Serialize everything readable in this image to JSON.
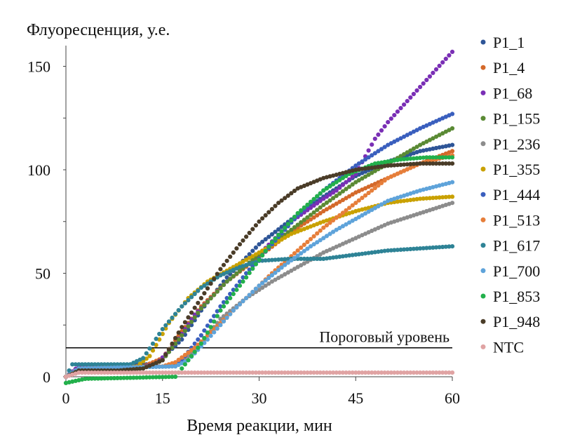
{
  "chart_data": {
    "type": "scatter",
    "ylabel": "Флуоресценция, у.е.",
    "xlabel": "Время реакции, мин",
    "xlim": [
      0,
      60
    ],
    "ylim": [
      0,
      160
    ],
    "x_ticks": [
      0,
      15,
      30,
      45,
      60
    ],
    "y_ticks": [
      0,
      50,
      100,
      150
    ],
    "grid": false,
    "legend_position": "right",
    "threshold": {
      "value": 14,
      "label": "Пороговый уровень"
    },
    "series": [
      {
        "name": "P1_1",
        "color": "#2e5597",
        "points": [
          [
            0,
            0
          ],
          [
            2,
            5
          ],
          [
            10,
            6
          ],
          [
            13,
            6
          ],
          [
            15,
            9
          ],
          [
            18,
            18
          ],
          [
            21,
            32
          ],
          [
            25,
            48
          ],
          [
            30,
            64
          ],
          [
            35,
            76
          ],
          [
            40,
            87
          ],
          [
            45,
            97
          ],
          [
            50,
            104
          ],
          [
            55,
            109
          ],
          [
            60,
            112
          ]
        ]
      },
      {
        "name": "P1_4",
        "color": "#d4692a",
        "points": [
          [
            0,
            0
          ],
          [
            2,
            4
          ],
          [
            12,
            5
          ],
          [
            15,
            9
          ],
          [
            18,
            22
          ],
          [
            21,
            34
          ],
          [
            25,
            46
          ],
          [
            30,
            58
          ],
          [
            35,
            70
          ],
          [
            40,
            80
          ],
          [
            45,
            89
          ],
          [
            50,
            96
          ],
          [
            55,
            103
          ],
          [
            60,
            109
          ]
        ]
      },
      {
        "name": "P1_68",
        "color": "#7a2fb5",
        "points": [
          [
            0,
            0
          ],
          [
            2,
            5
          ],
          [
            12,
            5
          ],
          [
            14,
            6
          ],
          [
            17,
            16
          ],
          [
            20,
            30
          ],
          [
            25,
            46
          ],
          [
            30,
            59
          ],
          [
            35,
            75
          ],
          [
            40,
            86
          ],
          [
            42,
            90
          ],
          [
            45,
            98
          ],
          [
            48,
            115
          ],
          [
            50,
            123
          ],
          [
            55,
            140
          ],
          [
            60,
            157
          ]
        ]
      },
      {
        "name": "P1_155",
        "color": "#5a8a34",
        "points": [
          [
            0,
            0
          ],
          [
            2,
            4
          ],
          [
            13,
            5
          ],
          [
            15,
            8
          ],
          [
            18,
            20
          ],
          [
            21,
            33
          ],
          [
            25,
            46
          ],
          [
            30,
            59
          ],
          [
            35,
            71
          ],
          [
            40,
            83
          ],
          [
            45,
            94
          ],
          [
            50,
            103
          ],
          [
            55,
            112
          ],
          [
            60,
            120
          ]
        ]
      },
      {
        "name": "P1_236",
        "color": "#8c8c8c",
        "points": [
          [
            0,
            0
          ],
          [
            2,
            4
          ],
          [
            16,
            5
          ],
          [
            18,
            7
          ],
          [
            21,
            16
          ],
          [
            24,
            28
          ],
          [
            28,
            38
          ],
          [
            32,
            46
          ],
          [
            36,
            53
          ],
          [
            40,
            60
          ],
          [
            45,
            67
          ],
          [
            50,
            74
          ],
          [
            55,
            79
          ],
          [
            60,
            84
          ]
        ]
      },
      {
        "name": "P1_355",
        "color": "#c9a100",
        "points": [
          [
            0,
            0
          ],
          [
            2,
            4
          ],
          [
            11,
            5
          ],
          [
            13,
            10
          ],
          [
            16,
            26
          ],
          [
            19,
            38
          ],
          [
            22,
            46
          ],
          [
            26,
            53
          ],
          [
            30,
            60
          ],
          [
            35,
            69
          ],
          [
            40,
            75
          ],
          [
            45,
            80
          ],
          [
            50,
            84
          ],
          [
            55,
            86
          ],
          [
            60,
            87
          ]
        ]
      },
      {
        "name": "P1_444",
        "color": "#3a5fbe",
        "points": [
          [
            0,
            0
          ],
          [
            2,
            4
          ],
          [
            16,
            5
          ],
          [
            18,
            8
          ],
          [
            21,
            20
          ],
          [
            24,
            34
          ],
          [
            28,
            50
          ],
          [
            32,
            64
          ],
          [
            36,
            78
          ],
          [
            40,
            90
          ],
          [
            45,
            102
          ],
          [
            50,
            112
          ],
          [
            55,
            120
          ],
          [
            60,
            127
          ]
        ]
      },
      {
        "name": "P1_513",
        "color": "#e67e3a",
        "points": [
          [
            0,
            0
          ],
          [
            2,
            4
          ],
          [
            15,
            5
          ],
          [
            17,
            7
          ],
          [
            20,
            14
          ],
          [
            24,
            26
          ],
          [
            28,
            38
          ],
          [
            32,
            50
          ],
          [
            36,
            61
          ],
          [
            40,
            72
          ],
          [
            45,
            84
          ],
          [
            50,
            96
          ],
          [
            55,
            103
          ],
          [
            60,
            107
          ]
        ]
      },
      {
        "name": "P1_617",
        "color": "#2e8396",
        "points": [
          [
            0,
            0
          ],
          [
            1,
            6
          ],
          [
            10,
            6
          ],
          [
            12,
            9
          ],
          [
            15,
            23
          ],
          [
            18,
            34
          ],
          [
            21,
            43
          ],
          [
            24,
            49
          ],
          [
            27,
            53
          ],
          [
            30,
            56
          ],
          [
            35,
            57
          ],
          [
            40,
            57
          ],
          [
            45,
            59
          ],
          [
            50,
            61
          ],
          [
            55,
            62
          ],
          [
            60,
            63
          ]
        ]
      },
      {
        "name": "P1_700",
        "color": "#5ea3da",
        "points": [
          [
            0,
            0
          ],
          [
            2,
            4
          ],
          [
            17,
            5
          ],
          [
            19,
            8
          ],
          [
            22,
            18
          ],
          [
            26,
            32
          ],
          [
            30,
            44
          ],
          [
            34,
            54
          ],
          [
            38,
            63
          ],
          [
            42,
            71
          ],
          [
            46,
            78
          ],
          [
            50,
            85
          ],
          [
            55,
            90
          ],
          [
            60,
            94
          ]
        ]
      },
      {
        "name": "P1_853",
        "color": "#22b04b",
        "points": [
          [
            0,
            -3
          ],
          [
            3,
            -1
          ],
          [
            17,
            0
          ],
          [
            19,
            8
          ],
          [
            21,
            16
          ],
          [
            24,
            32
          ],
          [
            28,
            48
          ],
          [
            32,
            65
          ],
          [
            36,
            79
          ],
          [
            40,
            90
          ],
          [
            44,
            98
          ],
          [
            48,
            103
          ],
          [
            52,
            105
          ],
          [
            56,
            106
          ],
          [
            60,
            106
          ]
        ]
      },
      {
        "name": "P1_948",
        "color": "#4a3c28",
        "points": [
          [
            0,
            0
          ],
          [
            2,
            3
          ],
          [
            8,
            3
          ],
          [
            12,
            4
          ],
          [
            15,
            8
          ],
          [
            18,
            24
          ],
          [
            21,
            38
          ],
          [
            24,
            52
          ],
          [
            27,
            64
          ],
          [
            30,
            75
          ],
          [
            33,
            84
          ],
          [
            36,
            91
          ],
          [
            40,
            96
          ],
          [
            45,
            100
          ],
          [
            50,
            102
          ],
          [
            55,
            103
          ],
          [
            60,
            103
          ]
        ]
      },
      {
        "name": "NTC",
        "color": "#e0a3a3",
        "points": [
          [
            0,
            0
          ],
          [
            2,
            2
          ],
          [
            10,
            2
          ],
          [
            20,
            2
          ],
          [
            30,
            2
          ],
          [
            40,
            2
          ],
          [
            50,
            2
          ],
          [
            60,
            2
          ]
        ]
      }
    ]
  }
}
